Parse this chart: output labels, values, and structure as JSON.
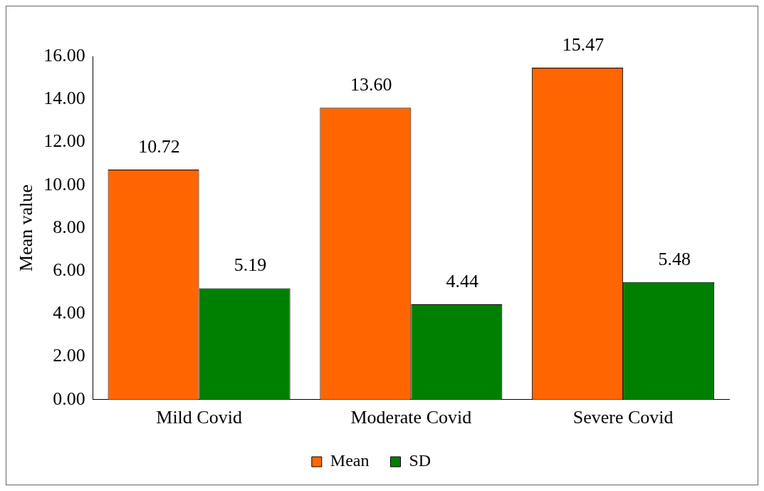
{
  "chart_data": {
    "type": "bar",
    "ylabel": "Mean value",
    "categories": [
      "Mild Covid",
      "Moderate Covid",
      "Severe Covid"
    ],
    "series": [
      {
        "name": "Mean",
        "color": "#ff6600",
        "values": [
          10.72,
          13.6,
          15.47
        ],
        "value_labels": [
          "10.72",
          "13.60",
          "15.47"
        ]
      },
      {
        "name": "SD",
        "color": "#008000",
        "values": [
          5.19,
          4.44,
          5.48
        ],
        "value_labels": [
          "5.19",
          "4.44",
          "5.48"
        ]
      }
    ],
    "ylim": [
      0,
      16
    ],
    "yticks": [
      {
        "value": 0,
        "label": "0.00"
      },
      {
        "value": 2,
        "label": "2.00"
      },
      {
        "value": 4,
        "label": "4.00"
      },
      {
        "value": 6,
        "label": "6.00"
      },
      {
        "value": 8,
        "label": "8.00"
      },
      {
        "value": 10,
        "label": "10.00"
      },
      {
        "value": 12,
        "label": "12.00"
      },
      {
        "value": 14,
        "label": "14.00"
      },
      {
        "value": 16,
        "label": "16.00"
      }
    ],
    "grid": false,
    "legend": "bottom"
  }
}
